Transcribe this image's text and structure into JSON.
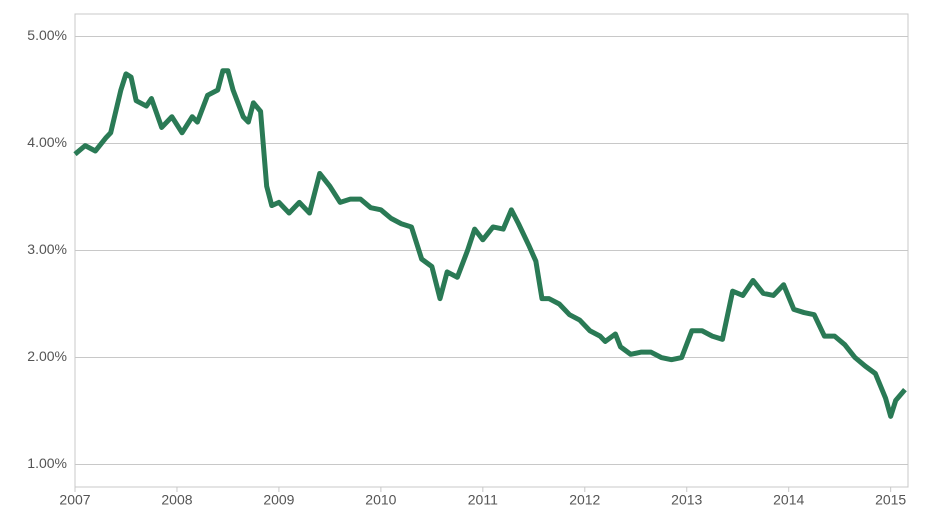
{
  "chart_data": {
    "type": "line",
    "x": [
      2007.0,
      2007.1,
      2007.2,
      2007.3,
      2007.35,
      2007.45,
      2007.5,
      2007.55,
      2007.6,
      2007.7,
      2007.75,
      2007.85,
      2007.95,
      2008.05,
      2008.15,
      2008.2,
      2008.3,
      2008.4,
      2008.45,
      2008.5,
      2008.55,
      2008.65,
      2008.7,
      2008.75,
      2008.82,
      2008.88,
      2008.93,
      2009.0,
      2009.1,
      2009.2,
      2009.3,
      2009.4,
      2009.5,
      2009.6,
      2009.7,
      2009.8,
      2009.9,
      2010.0,
      2010.1,
      2010.2,
      2010.3,
      2010.4,
      2010.5,
      2010.58,
      2010.65,
      2010.75,
      2010.85,
      2010.92,
      2011.0,
      2011.1,
      2011.2,
      2011.28,
      2011.35,
      2011.45,
      2011.52,
      2011.58,
      2011.65,
      2011.75,
      2011.85,
      2011.95,
      2012.05,
      2012.15,
      2012.2,
      2012.3,
      2012.35,
      2012.45,
      2012.55,
      2012.65,
      2012.75,
      2012.85,
      2012.95,
      2013.05,
      2013.15,
      2013.25,
      2013.35,
      2013.45,
      2013.55,
      2013.65,
      2013.75,
      2013.85,
      2013.95,
      2014.05,
      2014.15,
      2014.25,
      2014.35,
      2014.45,
      2014.55,
      2014.65,
      2014.75,
      2014.85,
      2014.95,
      2015.0,
      2015.05,
      2015.14
    ],
    "series": [
      {
        "color": "#2a7a55",
        "values": [
          3.9,
          3.98,
          3.93,
          4.05,
          4.1,
          4.5,
          4.65,
          4.62,
          4.4,
          4.35,
          4.42,
          4.15,
          4.25,
          4.1,
          4.25,
          4.2,
          4.45,
          4.5,
          4.68,
          4.68,
          4.5,
          4.25,
          4.2,
          4.38,
          4.3,
          3.6,
          3.42,
          3.45,
          3.35,
          3.45,
          3.35,
          3.72,
          3.6,
          3.45,
          3.48,
          3.48,
          3.4,
          3.38,
          3.3,
          3.25,
          3.22,
          2.92,
          2.85,
          2.55,
          2.8,
          2.75,
          3.0,
          3.2,
          3.1,
          3.22,
          3.2,
          3.38,
          3.25,
          3.05,
          2.9,
          2.55,
          2.55,
          2.5,
          2.4,
          2.35,
          2.25,
          2.2,
          2.15,
          2.22,
          2.1,
          2.03,
          2.05,
          2.05,
          2.0,
          1.98,
          2.0,
          2.25,
          2.25,
          2.2,
          2.17,
          2.62,
          2.58,
          2.72,
          2.6,
          2.58,
          2.68,
          2.45,
          2.42,
          2.4,
          2.2,
          2.2,
          2.12,
          2.0,
          1.92,
          1.85,
          1.62,
          1.45,
          1.6,
          1.7
        ]
      }
    ],
    "xlim": [
      2007,
      2015.17
    ],
    "xticks": [
      2007,
      2008,
      2009,
      2010,
      2011,
      2012,
      2013,
      2014,
      2015
    ],
    "ylim": [
      0.79,
      5.21
    ],
    "yticks": [
      {
        "value": 1,
        "label": "1.00%"
      },
      {
        "value": 2,
        "label": "2.00%"
      },
      {
        "value": 3,
        "label": "3.00%"
      },
      {
        "value": 4,
        "label": "4.00%"
      },
      {
        "value": 5,
        "label": "5.00%"
      }
    ],
    "grid": true
  }
}
